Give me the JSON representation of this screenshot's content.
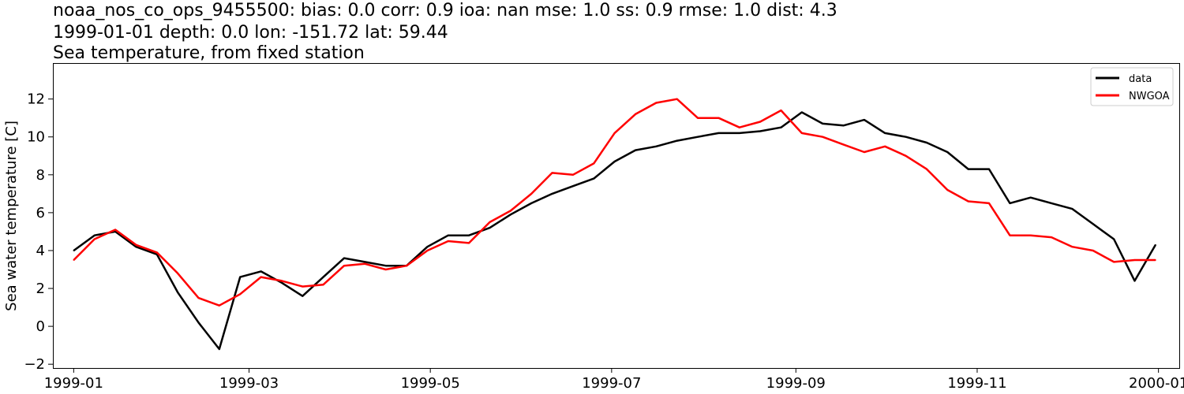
{
  "header": {
    "line1": "noaa_nos_co_ops_9455500: bias: 0.0  corr: 0.9  ioa: nan  mse: 1.0  ss: 0.9  rmse: 1.0  dist: 4.3",
    "line2": "1999-01-01 depth: 0.0 lon: -151.72 lat: 59.44",
    "line3": "Sea temperature, from fixed station"
  },
  "chart_data": {
    "type": "line",
    "title": "noaa_nos_co_ops_9455500: bias: 0.0  corr: 0.9  ioa: nan  mse: 1.0  ss: 0.9  rmse: 1.0  dist: 4.3",
    "subtitle": "1999-01-01 depth: 0.0 lon: -151.72 lat: 59.44 — Sea temperature, from fixed station",
    "xlabel": "",
    "ylabel": "Sea water temperature [C]",
    "xlim": [
      "1998-12-25",
      "2000-01-08"
    ],
    "ylim": [
      -2.2,
      13.9
    ],
    "x_ticks": [
      "1999-01",
      "1999-03",
      "1999-05",
      "1999-07",
      "1999-09",
      "1999-11",
      "2000-01"
    ],
    "y_ticks": [
      -2,
      0,
      2,
      4,
      6,
      8,
      10,
      12
    ],
    "grid": false,
    "legend_position": "top-right",
    "x": [
      "1999-01-01",
      "1999-01-08",
      "1999-01-15",
      "1999-01-22",
      "1999-01-29",
      "1999-02-05",
      "1999-02-12",
      "1999-02-19",
      "1999-02-26",
      "1999-03-05",
      "1999-03-12",
      "1999-03-19",
      "1999-03-26",
      "1999-04-02",
      "1999-04-09",
      "1999-04-16",
      "1999-04-23",
      "1999-04-30",
      "1999-05-07",
      "1999-05-14",
      "1999-05-21",
      "1999-05-28",
      "1999-06-04",
      "1999-06-11",
      "1999-06-18",
      "1999-06-25",
      "1999-07-02",
      "1999-07-09",
      "1999-07-16",
      "1999-07-23",
      "1999-07-30",
      "1999-08-06",
      "1999-08-13",
      "1999-08-20",
      "1999-08-27",
      "1999-09-03",
      "1999-09-10",
      "1999-09-17",
      "1999-09-24",
      "1999-10-01",
      "1999-10-08",
      "1999-10-15",
      "1999-10-22",
      "1999-10-29",
      "1999-11-05",
      "1999-11-12",
      "1999-11-19",
      "1999-11-26",
      "1999-12-03",
      "1999-12-10",
      "1999-12-17",
      "1999-12-24",
      "1999-12-31"
    ],
    "series": [
      {
        "name": "data",
        "color": "#000000",
        "values": [
          4.0,
          4.8,
          5.0,
          4.2,
          3.8,
          1.8,
          0.2,
          -1.2,
          2.6,
          2.9,
          2.3,
          1.6,
          2.6,
          3.6,
          3.4,
          3.2,
          3.2,
          4.2,
          4.8,
          4.8,
          5.2,
          5.9,
          6.5,
          7.0,
          7.4,
          7.8,
          8.7,
          9.3,
          9.5,
          9.8,
          10.0,
          10.2,
          10.2,
          10.3,
          10.5,
          11.3,
          10.7,
          10.6,
          10.9,
          10.2,
          10.0,
          9.7,
          9.2,
          8.3,
          8.3,
          6.5,
          6.8,
          6.5,
          6.2,
          5.4,
          4.6,
          2.4,
          4.3
        ]
      },
      {
        "name": "NWGOA",
        "color": "#ff0000",
        "values": [
          3.5,
          4.6,
          5.1,
          4.3,
          3.9,
          2.8,
          1.5,
          1.1,
          1.7,
          2.6,
          2.4,
          2.1,
          2.2,
          3.2,
          3.3,
          3.0,
          3.2,
          4.0,
          4.5,
          4.4,
          5.5,
          6.1,
          7.0,
          8.1,
          8.0,
          8.6,
          10.2,
          11.2,
          11.8,
          12.0,
          11.0,
          11.0,
          10.5,
          10.8,
          11.4,
          10.2,
          10.0,
          9.6,
          9.2,
          9.5,
          9.0,
          8.3,
          7.2,
          6.6,
          6.5,
          4.8,
          4.8,
          4.7,
          4.2,
          4.0,
          3.4,
          3.5,
          3.5
        ]
      }
    ]
  }
}
